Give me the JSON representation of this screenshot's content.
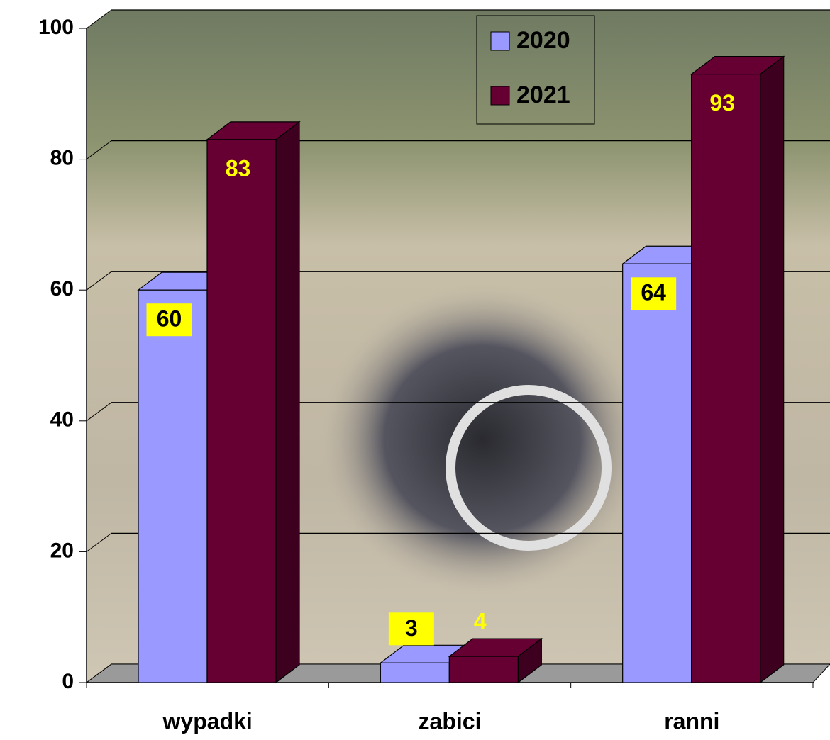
{
  "chart_data": {
    "type": "bar3d",
    "categories": [
      "wypadki",
      "zabici",
      "ranni"
    ],
    "series": [
      {
        "name": "2020",
        "color": "#9999ff",
        "values": [
          60,
          3,
          64
        ]
      },
      {
        "name": "2021",
        "color": "#660033",
        "values": [
          83,
          4,
          93
        ]
      }
    ],
    "ylim": [
      0,
      100
    ],
    "yticks": [
      0,
      20,
      40,
      60,
      80,
      100
    ],
    "grid": true,
    "legend": "top"
  }
}
